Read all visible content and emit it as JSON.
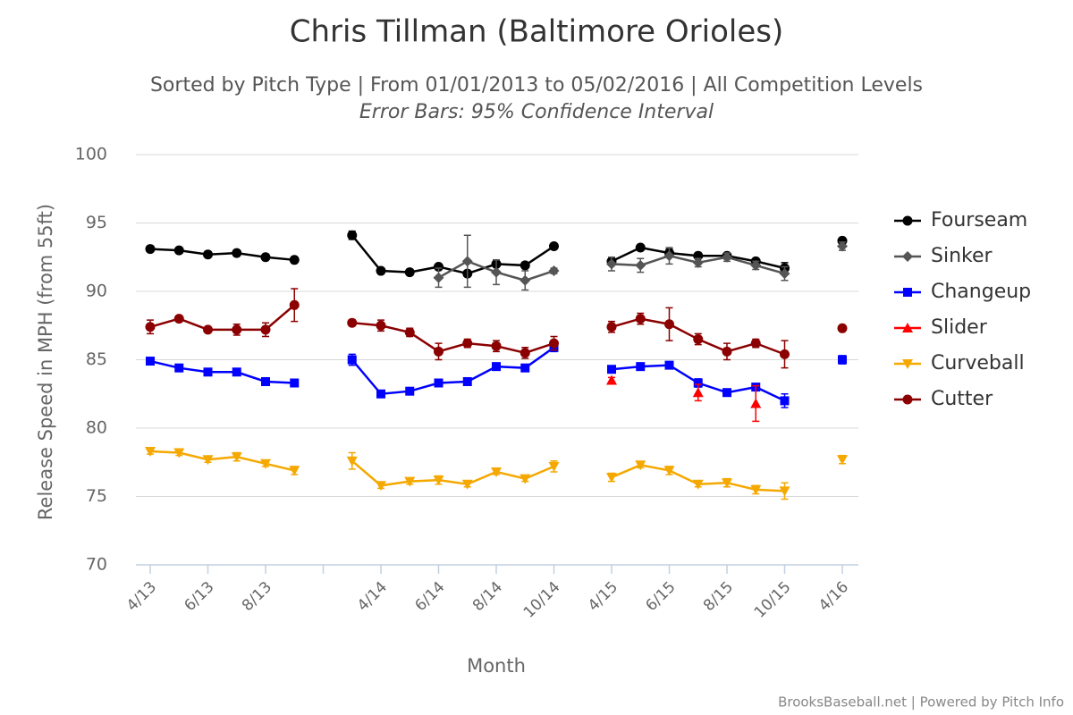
{
  "chart_data": {
    "type": "line",
    "title": "Chris Tillman (Baltimore Orioles)",
    "subtitle": "Sorted by Pitch Type | From 01/01/2013 to 05/02/2016 | All Competition Levels",
    "subtitle2": "Error Bars: 95% Confidence Interval",
    "y_label": "Release Speed in MPH (from 55ft)",
    "x_label": "Month",
    "credit": "BrooksBaseball.net | Powered by Pitch Info",
    "categories": [
      "4/13",
      null,
      "6/13",
      null,
      "8/13",
      null,
      null,
      null,
      "4/14",
      null,
      "6/14",
      null,
      "8/14",
      null,
      "10/14",
      null,
      "4/15",
      null,
      "6/15",
      null,
      "8/15",
      null,
      "10/15",
      null,
      "4/16"
    ],
    "ylim": [
      70,
      100
    ],
    "yticks": [
      70,
      75,
      80,
      85,
      90,
      95,
      100
    ],
    "grid": true,
    "legend": "right",
    "series": [
      {
        "name": "Fourseam",
        "color": "#000000",
        "marker": "circle",
        "values": [
          93.1,
          93.0,
          92.7,
          92.8,
          92.5,
          92.3,
          null,
          94.1,
          91.5,
          91.4,
          91.8,
          91.3,
          92.0,
          91.9,
          93.3,
          null,
          92.2,
          93.2,
          92.8,
          92.6,
          92.6,
          92.2,
          91.7,
          null,
          93.7
        ],
        "errors": [
          0.2,
          0.2,
          0.2,
          0.2,
          0.2,
          0.2,
          null,
          0.3,
          0.2,
          0.2,
          0.2,
          0.2,
          0.2,
          0.2,
          0.2,
          null,
          0.3,
          0.2,
          0.3,
          0.2,
          0.2,
          0.2,
          0.4,
          null,
          0.2
        ]
      },
      {
        "name": "Sinker",
        "color": "#555555",
        "marker": "diamond",
        "values": [
          null,
          null,
          null,
          null,
          null,
          null,
          null,
          null,
          null,
          null,
          91.0,
          92.2,
          91.4,
          90.8,
          91.5,
          null,
          92.0,
          91.9,
          92.6,
          92.1,
          92.5,
          91.9,
          91.3,
          null,
          93.3
        ],
        "errors": [
          null,
          null,
          null,
          null,
          null,
          null,
          null,
          null,
          null,
          null,
          0.7,
          1.9,
          0.9,
          0.7,
          0.2,
          null,
          0.5,
          0.5,
          0.6,
          0.3,
          0.3,
          0.3,
          0.5,
          null,
          0.3
        ]
      },
      {
        "name": "Changeup",
        "color": "#0000ff",
        "marker": "square",
        "values": [
          84.9,
          84.4,
          84.1,
          84.1,
          83.4,
          83.3,
          null,
          85.0,
          82.5,
          82.7,
          83.3,
          83.4,
          84.5,
          84.4,
          85.9,
          null,
          84.3,
          84.5,
          84.6,
          83.3,
          82.6,
          83.0,
          82.0,
          null,
          85.0
        ],
        "errors": [
          0.2,
          0.2,
          0.2,
          0.2,
          0.2,
          0.2,
          null,
          0.4,
          0.2,
          0.2,
          0.2,
          0.2,
          0.2,
          0.2,
          0.3,
          null,
          0.2,
          0.2,
          0.2,
          0.3,
          0.2,
          0.2,
          0.5,
          null,
          0.3
        ]
      },
      {
        "name": "Slider",
        "color": "#ff0000",
        "marker": "triangle",
        "values": [
          null,
          null,
          null,
          null,
          null,
          null,
          null,
          null,
          null,
          null,
          null,
          null,
          null,
          null,
          null,
          null,
          83.5,
          null,
          null,
          82.6,
          null,
          81.8,
          null,
          null,
          null
        ],
        "errors": [
          null,
          null,
          null,
          null,
          null,
          null,
          null,
          null,
          null,
          null,
          null,
          null,
          null,
          null,
          null,
          null,
          0.2,
          null,
          null,
          0.6,
          null,
          1.3,
          null,
          null,
          null
        ]
      },
      {
        "name": "Curveball",
        "color": "#f5a800",
        "marker": "triangle-down",
        "values": [
          78.3,
          78.2,
          77.7,
          77.9,
          77.4,
          76.9,
          null,
          77.6,
          75.8,
          76.1,
          76.2,
          75.9,
          76.8,
          76.3,
          77.2,
          null,
          76.4,
          77.3,
          76.9,
          75.9,
          76.0,
          75.5,
          75.4,
          null,
          77.7
        ],
        "errors": [
          0.2,
          0.2,
          0.2,
          0.3,
          0.2,
          0.3,
          null,
          0.6,
          0.2,
          0.2,
          0.3,
          0.2,
          0.2,
          0.2,
          0.4,
          null,
          0.3,
          0.2,
          0.3,
          0.2,
          0.3,
          0.3,
          0.6,
          null,
          0.3
        ]
      },
      {
        "name": "Cutter",
        "color": "#8b0000",
        "marker": "circle",
        "values": [
          87.4,
          88.0,
          87.2,
          87.2,
          87.2,
          89.0,
          null,
          87.7,
          87.5,
          87.0,
          85.6,
          86.2,
          86.0,
          85.5,
          86.2,
          null,
          87.4,
          88.0,
          87.6,
          86.5,
          85.6,
          86.2,
          85.4,
          null,
          87.3
        ],
        "errors": [
          0.5,
          0.2,
          0.2,
          0.4,
          0.5,
          1.2,
          null,
          0.2,
          0.4,
          0.3,
          0.6,
          0.3,
          0.4,
          0.4,
          0.5,
          null,
          0.4,
          0.4,
          1.2,
          0.4,
          0.6,
          0.3,
          1.0,
          null,
          0.2
        ]
      }
    ]
  }
}
